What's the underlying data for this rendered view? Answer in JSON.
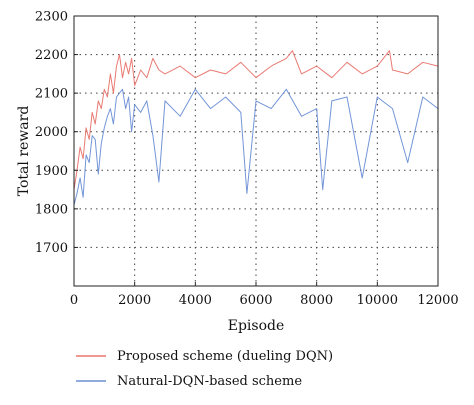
{
  "chart_data": {
    "type": "line",
    "xlabel": "Episode",
    "ylabel": "Total reward",
    "xlim": [
      0,
      12000
    ],
    "ylim": [
      1600,
      2300
    ],
    "xticks": [
      0,
      2000,
      4000,
      6000,
      8000,
      10000,
      12000
    ],
    "yticks": [
      1700,
      1800,
      1900,
      2000,
      2100,
      2200,
      2300
    ],
    "grid": true,
    "legend_position": "bottom",
    "series": [
      {
        "name": "Proposed scheme (dueling DQN)",
        "color": "#e8736b",
        "x": [
          0,
          100,
          200,
          300,
          400,
          500,
          600,
          700,
          800,
          900,
          1000,
          1100,
          1200,
          1300,
          1400,
          1500,
          1600,
          1700,
          1800,
          1900,
          2000,
          2200,
          2400,
          2600,
          2800,
          3000,
          3500,
          4000,
          4500,
          5000,
          5500,
          6000,
          6500,
          7000,
          7200,
          7500,
          8000,
          8500,
          9000,
          9500,
          10000,
          10400,
          10500,
          11000,
          11500,
          12000
        ],
        "y": [
          1850,
          1900,
          1960,
          1930,
          2010,
          1980,
          2050,
          2020,
          2080,
          2060,
          2110,
          2090,
          2150,
          2100,
          2170,
          2200,
          2140,
          2180,
          2150,
          2190,
          2120,
          2160,
          2140,
          2190,
          2160,
          2150,
          2170,
          2140,
          2160,
          2150,
          2180,
          2140,
          2170,
          2190,
          2210,
          2150,
          2170,
          2140,
          2180,
          2150,
          2170,
          2210,
          2160,
          2150,
          2180,
          2170
        ]
      },
      {
        "name": "Natural-DQN-based scheme",
        "color": "#6b8fd6",
        "x": [
          0,
          100,
          200,
          300,
          400,
          500,
          600,
          700,
          800,
          900,
          1000,
          1100,
          1200,
          1300,
          1400,
          1500,
          1600,
          1700,
          1800,
          1900,
          2000,
          2200,
          2400,
          2600,
          2800,
          3000,
          3500,
          4000,
          4500,
          5000,
          5500,
          5700,
          6000,
          6500,
          7000,
          7500,
          8000,
          8200,
          8500,
          9000,
          9500,
          10000,
          10500,
          11000,
          11500,
          12000
        ],
        "y": [
          1810,
          1840,
          1880,
          1830,
          1940,
          1920,
          1990,
          1980,
          1890,
          1970,
          2010,
          2040,
          2060,
          2020,
          2090,
          2100,
          2110,
          2060,
          2090,
          2000,
          2070,
          2050,
          2080,
          1990,
          1870,
          2080,
          2040,
          2110,
          2060,
          2090,
          2050,
          1840,
          2080,
          2060,
          2110,
          2040,
          2060,
          1850,
          2080,
          2090,
          1880,
          2090,
          2060,
          1920,
          2090,
          2060
        ]
      }
    ]
  }
}
